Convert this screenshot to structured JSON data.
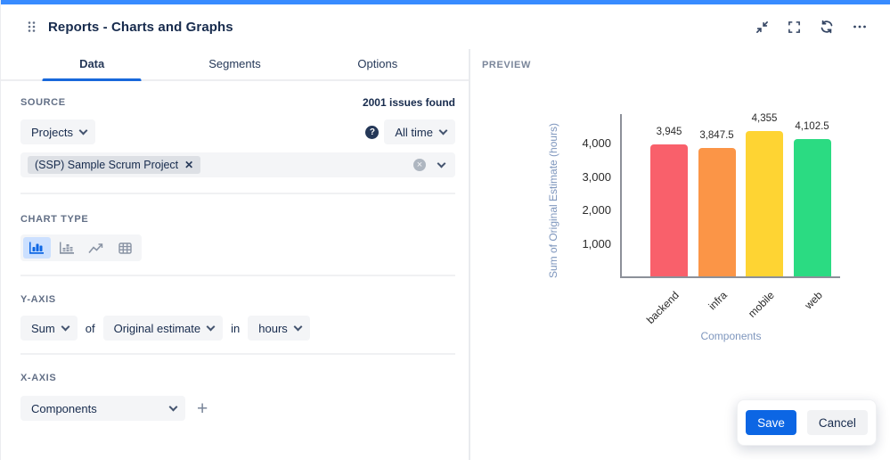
{
  "header": {
    "title": "Reports - Charts and Graphs",
    "icons": [
      "drag-handle",
      "collapse",
      "fullscreen",
      "refresh",
      "more"
    ]
  },
  "tabs": [
    {
      "label": "Data",
      "active": true
    },
    {
      "label": "Segments",
      "active": false
    },
    {
      "label": "Options",
      "active": false
    }
  ],
  "source": {
    "label": "SOURCE",
    "issues_found": "2001 issues found",
    "source_type": "Projects",
    "time_range": "All time",
    "project_tag": "(SSP) Sample Scrum Project",
    "tag_remove_glyph": "✕",
    "clear_glyph": "×",
    "help_glyph": "?"
  },
  "chart_type": {
    "label": "CHART TYPE",
    "options": [
      "bar-chart",
      "stacked-bar-chart",
      "line-chart",
      "table"
    ],
    "selected": "bar-chart"
  },
  "y_axis": {
    "label": "Y-AXIS",
    "aggregation": "Sum",
    "of_text": "of",
    "field": "Original estimate",
    "in_text": "in",
    "unit": "hours"
  },
  "x_axis": {
    "label": "X-AXIS",
    "field": "Components",
    "add_glyph": "+"
  },
  "preview": {
    "label": "PREVIEW"
  },
  "actions": {
    "save": "Save",
    "cancel": "Cancel"
  },
  "colors": {
    "accent_bar": "#388BFF",
    "tab_underline": "#1868DB",
    "primary_button": "#0C66E4",
    "field_bg": "#F4F5F7",
    "bar_red": "#F9606B",
    "bar_orange": "#FB9547",
    "bar_yellow": "#FED433",
    "bar_green": "#2BDB82"
  },
  "chart_data": {
    "type": "bar",
    "title": "",
    "categories": [
      "backend",
      "infra",
      "mobile",
      "web"
    ],
    "values": [
      3945,
      3847.5,
      4355,
      4102.5
    ],
    "value_labels": [
      "3,945",
      "3,847.5",
      "4,355",
      "4,102.5"
    ],
    "bar_colors": [
      "#F9606B",
      "#FB9547",
      "#FED433",
      "#2BDB82"
    ],
    "xlabel": "Components",
    "ylabel": "Sum of Original Estimate (hours)",
    "yticks": [
      1000,
      2000,
      3000,
      4000
    ],
    "ytick_labels": [
      "1,000",
      "2,000",
      "3,000",
      "4,000"
    ],
    "ylim": [
      0,
      4900
    ],
    "grid": false,
    "legend": "none"
  }
}
